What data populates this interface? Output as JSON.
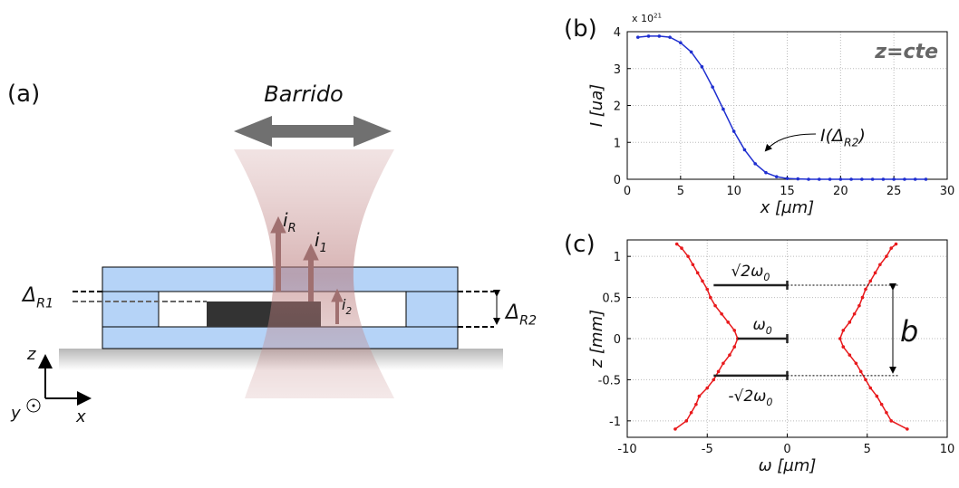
{
  "diagram": {
    "label": "(a)",
    "scan": "Barrido",
    "currents": [
      {
        "text": "i",
        "sub": "R"
      },
      {
        "text": "i",
        "sub": "1"
      },
      {
        "text": "i",
        "sub": "2"
      }
    ],
    "gaps": [
      {
        "text": "Δ",
        "sub": "R1"
      },
      {
        "text": "Δ",
        "sub": "R2"
      }
    ],
    "axes": {
      "z": "z",
      "y": "y",
      "x": "x"
    }
  },
  "chart_data": [
    {
      "type": "line",
      "label": "(b)",
      "multiplier": {
        "text": "x 10",
        "exp": "21"
      },
      "tag": "z=cte",
      "xlabel": "x [µm]",
      "ylabel": "I [ua]",
      "annotation": {
        "text": "I(Δ",
        "sub": "R2",
        "close": ")"
      },
      "x": [
        1,
        2,
        3,
        4,
        5,
        6,
        7,
        8,
        9,
        10,
        11,
        12,
        13,
        14,
        15,
        16,
        17,
        18,
        19,
        20,
        21,
        22,
        23,
        24,
        25,
        26,
        27,
        28
      ],
      "values": [
        3.85,
        3.88,
        3.88,
        3.85,
        3.7,
        3.45,
        3.05,
        2.5,
        1.9,
        1.3,
        0.8,
        0.42,
        0.18,
        0.07,
        0.02,
        0.01,
        0,
        0,
        0,
        0,
        0,
        0,
        0,
        0,
        0,
        0,
        0,
        0
      ],
      "color": "#1f2fd0",
      "xlim": [
        0,
        30
      ],
      "xticks": [
        0,
        5,
        10,
        15,
        20,
        25,
        30
      ],
      "ylim": [
        0,
        4
      ],
      "yticks": [
        0,
        1,
        2,
        3,
        4
      ],
      "grid": true
    },
    {
      "type": "line",
      "label": "(c)",
      "xlabel": "ω [µm]",
      "ylabel": "z [mm]",
      "series": [
        {
          "color": "#e8191c",
          "x": [
            -7,
            -6.3,
            -6,
            -5.7,
            -5.5,
            -5,
            -4.6,
            -4.3,
            -4,
            -3.6,
            -3.3,
            -3.1,
            -3.3,
            -3.7,
            -4.1,
            -4.5,
            -4.8,
            -5,
            -5.3,
            -5.6,
            -5.9,
            -6.2,
            -6.6,
            -6.9
          ],
          "values": [
            -1.1,
            -1,
            -0.9,
            -0.8,
            -0.7,
            -0.6,
            -0.5,
            -0.4,
            -0.3,
            -0.2,
            -0.1,
            0,
            0.1,
            0.2,
            0.3,
            0.4,
            0.5,
            0.6,
            0.7,
            0.8,
            0.9,
            1,
            1.1,
            1.15
          ]
        },
        {
          "color": "#e8191c",
          "x": [
            7.5,
            6.5,
            6.2,
            5.9,
            5.6,
            5.2,
            4.9,
            4.6,
            4.3,
            3.9,
            3.5,
            3.3,
            3.5,
            3.9,
            4.2,
            4.5,
            4.7,
            4.9,
            5.2,
            5.5,
            5.8,
            6.2,
            6.5,
            6.8
          ],
          "values": [
            -1.1,
            -1,
            -0.9,
            -0.8,
            -0.7,
            -0.6,
            -0.5,
            -0.4,
            -0.3,
            -0.2,
            -0.1,
            0,
            0.1,
            0.2,
            0.3,
            0.4,
            0.5,
            0.6,
            0.7,
            0.8,
            0.9,
            1,
            1.1,
            1.15
          ]
        }
      ],
      "annotations": [
        {
          "text": "√2ω",
          "sub": "0",
          "z": 0.65,
          "x": [
            -4.6,
            0
          ]
        },
        {
          "text": "ω",
          "sub": "0",
          "z": 0,
          "x": [
            -3.1,
            0
          ]
        },
        {
          "text": "-√2ω",
          "sub": "0",
          "z": -0.45,
          "x": [
            -4.6,
            0
          ]
        }
      ],
      "bracket": {
        "text": "b",
        "z": [
          -0.45,
          0.65
        ]
      },
      "xlim": [
        -10,
        10
      ],
      "xticks": [
        -10,
        -5,
        0,
        5,
        10
      ],
      "ylim": [
        -1.2,
        1.2
      ],
      "yticks": [
        -1,
        -0.5,
        0,
        0.5,
        1
      ],
      "grid": true
    }
  ]
}
